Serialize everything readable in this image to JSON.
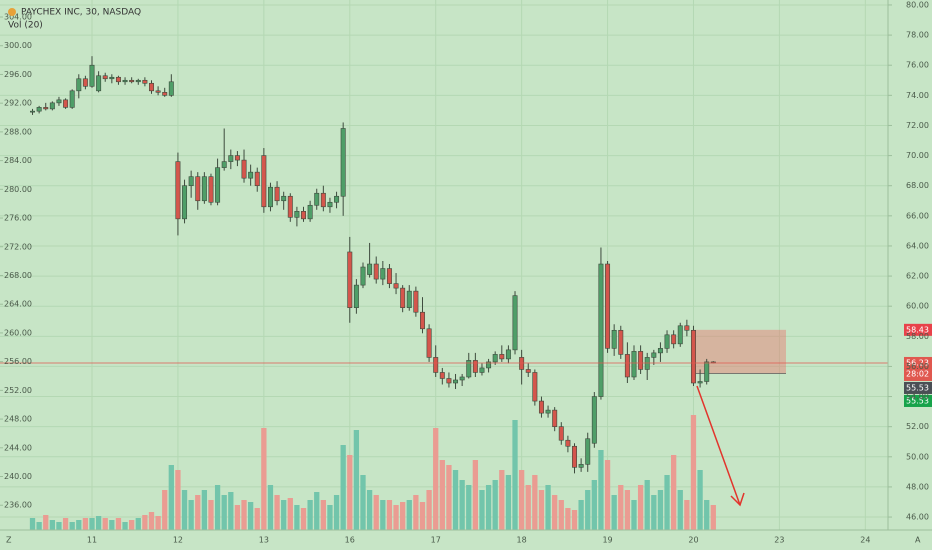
{
  "chart_data": {
    "type": "candlestick",
    "title": "PAYCHEX INC, 30, NASDAQ",
    "subtitle": "Vol (20)",
    "background": "#c7e5c6",
    "grid": true,
    "grid_color": "#b4d8b3",
    "up_color": "#4f9e68",
    "down_color": "#d4564c",
    "volume_up_color": "#72c5ab",
    "volume_down_color": "#ea9c92",
    "xlim": [
      -4.92,
      129.43
    ],
    "xticks": [
      {
        "value": 9,
        "label": "11"
      },
      {
        "value": 22,
        "label": "12"
      },
      {
        "value": 35,
        "label": "13"
      },
      {
        "value": 48,
        "label": "16"
      },
      {
        "value": 61,
        "label": "17"
      },
      {
        "value": 74,
        "label": "18"
      },
      {
        "value": 87,
        "label": "19"
      },
      {
        "value": 100,
        "label": "20"
      },
      {
        "value": 113,
        "label": "23"
      },
      {
        "value": 126,
        "label": "24"
      }
    ],
    "ylim": [
      45.14,
      80.33
    ],
    "yticks": [
      {
        "value": 46,
        "label": "46.00"
      },
      {
        "value": 48,
        "label": "48.00"
      },
      {
        "value": 50,
        "label": "50.00"
      },
      {
        "value": 52,
        "label": "52.00"
      },
      {
        "value": 54,
        "label": "54.00"
      },
      {
        "value": 56,
        "label": "56.00"
      },
      {
        "value": 58,
        "label": "58.00"
      },
      {
        "value": 60,
        "label": "60.00"
      },
      {
        "value": 62,
        "label": "62.00"
      },
      {
        "value": 64,
        "label": "64.00"
      },
      {
        "value": 66,
        "label": "66.00"
      },
      {
        "value": 68,
        "label": "68.00"
      },
      {
        "value": 70,
        "label": "70.00"
      },
      {
        "value": 72,
        "label": "72.00"
      },
      {
        "value": 74,
        "label": "74.00"
      },
      {
        "value": 76,
        "label": "76.00"
      },
      {
        "value": 78,
        "label": "78.00"
      },
      {
        "value": 80,
        "label": "80.00"
      }
    ],
    "y2lim": [
      232.55,
      306.37
    ],
    "y2ticks": [
      {
        "value": 236,
        "label": "236.00"
      },
      {
        "value": 240,
        "label": "240.00"
      },
      {
        "value": 244,
        "label": "244.00"
      },
      {
        "value": 248,
        "label": "248.00"
      },
      {
        "value": 252,
        "label": "252.00"
      },
      {
        "value": 256,
        "label": "256.00"
      },
      {
        "value": 260,
        "label": "260.00"
      },
      {
        "value": 264,
        "label": "264.00"
      },
      {
        "value": 268,
        "label": "268.00"
      },
      {
        "value": 272,
        "label": "272.00"
      },
      {
        "value": 276,
        "label": "276.00"
      },
      {
        "value": 280,
        "label": "280.00"
      },
      {
        "value": 284,
        "label": "284.00"
      },
      {
        "value": 288,
        "label": "288.00"
      },
      {
        "value": 292,
        "label": "292.00"
      },
      {
        "value": 296,
        "label": "296.00"
      },
      {
        "value": 300,
        "label": "300.00"
      },
      {
        "value": 304,
        "label": "304.00"
      }
    ],
    "candles": [
      [
        72.9,
        73.1,
        72.7,
        72.95
      ],
      [
        72.95,
        73.3,
        72.8,
        73.2
      ],
      [
        73.2,
        73.5,
        73.0,
        73.1
      ],
      [
        73.1,
        73.6,
        73.0,
        73.5
      ],
      [
        73.5,
        73.9,
        73.3,
        73.7
      ],
      [
        73.7,
        73.8,
        73.1,
        73.2
      ],
      [
        73.2,
        74.4,
        73.1,
        74.3
      ],
      [
        74.3,
        75.4,
        73.8,
        75.1
      ],
      [
        75.1,
        75.3,
        74.4,
        74.6
      ],
      [
        74.6,
        76.6,
        74.5,
        76.0
      ],
      [
        74.3,
        75.6,
        74.2,
        75.3
      ],
      [
        75.3,
        75.5,
        74.9,
        75.1
      ],
      [
        75.1,
        75.4,
        74.8,
        75.2
      ],
      [
        75.2,
        75.3,
        74.7,
        74.9
      ],
      [
        74.9,
        75.2,
        74.7,
        75.0
      ],
      [
        75.0,
        75.2,
        74.8,
        74.9
      ],
      [
        74.9,
        75.1,
        74.7,
        75.0
      ],
      [
        75.0,
        75.2,
        74.6,
        74.8
      ],
      [
        74.8,
        75.0,
        74.1,
        74.3
      ],
      [
        74.3,
        74.6,
        74.0,
        74.2
      ],
      [
        74.2,
        74.5,
        73.9,
        74.0
      ],
      [
        74.0,
        75.4,
        73.9,
        74.9
      ],
      [
        69.6,
        70.2,
        64.7,
        65.8
      ],
      [
        65.8,
        68.4,
        65.5,
        68.0
      ],
      [
        68.0,
        69.0,
        67.2,
        68.6
      ],
      [
        68.6,
        68.9,
        66.4,
        67.0
      ],
      [
        67.0,
        68.9,
        66.8,
        68.6
      ],
      [
        68.6,
        68.8,
        66.7,
        66.9
      ],
      [
        66.9,
        69.8,
        66.7,
        69.2
      ],
      [
        69.2,
        71.8,
        69.0,
        69.6
      ],
      [
        69.6,
        70.4,
        69.1,
        70.0
      ],
      [
        70.0,
        70.3,
        69.3,
        69.7
      ],
      [
        69.7,
        70.4,
        68.2,
        68.5
      ],
      [
        68.5,
        69.4,
        68.0,
        68.9
      ],
      [
        68.9,
        69.2,
        67.6,
        68.0
      ],
      [
        70.0,
        70.5,
        66.2,
        66.6
      ],
      [
        66.6,
        68.2,
        66.3,
        67.9
      ],
      [
        67.9,
        68.3,
        66.7,
        67.0
      ],
      [
        67.0,
        67.6,
        66.4,
        67.3
      ],
      [
        67.3,
        67.5,
        65.6,
        65.9
      ],
      [
        65.9,
        66.6,
        65.3,
        66.3
      ],
      [
        66.3,
        66.6,
        65.6,
        65.8
      ],
      [
        65.8,
        67.0,
        65.6,
        66.7
      ],
      [
        66.7,
        67.8,
        66.4,
        67.5
      ],
      [
        67.5,
        68.0,
        66.3,
        66.6
      ],
      [
        66.6,
        67.2,
        66.2,
        66.9
      ],
      [
        66.9,
        67.6,
        66.5,
        67.3
      ],
      [
        67.3,
        72.2,
        66.0,
        71.8
      ],
      [
        63.6,
        64.6,
        58.9,
        59.9
      ],
      [
        59.9,
        61.8,
        59.5,
        61.4
      ],
      [
        61.4,
        62.9,
        61.2,
        62.6
      ],
      [
        62.1,
        64.2,
        61.9,
        62.8
      ],
      [
        62.8,
        63.3,
        61.5,
        61.8
      ],
      [
        61.8,
        63.0,
        61.4,
        62.5
      ],
      [
        62.5,
        62.8,
        61.2,
        61.5
      ],
      [
        61.5,
        62.2,
        60.8,
        61.2
      ],
      [
        61.2,
        61.4,
        59.6,
        59.9
      ],
      [
        59.9,
        61.4,
        59.7,
        61.0
      ],
      [
        61.0,
        61.3,
        59.3,
        59.6
      ],
      [
        59.6,
        60.6,
        58.2,
        58.5
      ],
      [
        58.5,
        58.8,
        56.3,
        56.6
      ],
      [
        56.6,
        57.4,
        55.3,
        55.6
      ],
      [
        55.6,
        55.9,
        54.8,
        55.2
      ],
      [
        55.2,
        55.6,
        54.6,
        54.9
      ],
      [
        54.9,
        55.5,
        54.5,
        55.1
      ],
      [
        55.1,
        55.5,
        54.7,
        55.3
      ],
      [
        55.3,
        56.9,
        55.2,
        56.4
      ],
      [
        56.4,
        56.9,
        55.3,
        55.6
      ],
      [
        55.6,
        56.2,
        55.4,
        55.9
      ],
      [
        55.9,
        56.5,
        55.6,
        56.3
      ],
      [
        56.3,
        57.0,
        56.1,
        56.8
      ],
      [
        56.8,
        57.4,
        56.3,
        56.5
      ],
      [
        56.5,
        57.4,
        56.2,
        57.1
      ],
      [
        57.1,
        61.0,
        56.8,
        60.7
      ],
      [
        56.6,
        57.1,
        54.8,
        55.8
      ],
      [
        55.8,
        56.2,
        55.3,
        55.6
      ],
      [
        55.6,
        55.8,
        53.4,
        53.7
      ],
      [
        53.7,
        54.0,
        52.6,
        52.9
      ],
      [
        52.9,
        53.4,
        52.6,
        53.1
      ],
      [
        53.1,
        53.3,
        51.7,
        52.0
      ],
      [
        52.0,
        52.3,
        50.8,
        51.1
      ],
      [
        51.1,
        51.4,
        50.3,
        50.7
      ],
      [
        50.7,
        50.9,
        48.9,
        49.3
      ],
      [
        49.3,
        49.9,
        49.0,
        49.5
      ],
      [
        49.5,
        51.6,
        49.0,
        51.2
      ],
      [
        50.9,
        54.3,
        50.6,
        54.0
      ],
      [
        54.0,
        63.9,
        53.8,
        62.8
      ],
      [
        62.8,
        63.0,
        56.9,
        57.2
      ],
      [
        57.2,
        58.8,
        56.7,
        58.4
      ],
      [
        58.4,
        58.7,
        56.5,
        56.8
      ],
      [
        56.8,
        57.6,
        54.9,
        55.3
      ],
      [
        55.3,
        57.4,
        55.1,
        57.0
      ],
      [
        57.0,
        57.4,
        55.5,
        55.8
      ],
      [
        55.8,
        56.9,
        55.1,
        56.6
      ],
      [
        56.6,
        57.1,
        56.1,
        56.9
      ],
      [
        56.9,
        57.6,
        56.3,
        57.2
      ],
      [
        57.2,
        58.4,
        56.9,
        58.1
      ],
      [
        58.1,
        58.4,
        57.2,
        57.5
      ],
      [
        57.5,
        58.9,
        57.3,
        58.7
      ],
      [
        58.7,
        59.1,
        58.0,
        58.4
      ],
      [
        58.4,
        58.7,
        54.7,
        54.9
      ],
      [
        54.9,
        55.8,
        54.6,
        55.0
      ],
      [
        55.0,
        56.5,
        54.8,
        56.3
      ],
      [
        56.3,
        56.35,
        56.2,
        56.23
      ]
    ],
    "volume": [
      12,
      8,
      15,
      10,
      8,
      12,
      8,
      10,
      12,
      12,
      14,
      12,
      10,
      12,
      8,
      10,
      12,
      15,
      18,
      14,
      40,
      65,
      60,
      40,
      30,
      35,
      40,
      30,
      45,
      35,
      38,
      25,
      30,
      28,
      22,
      102,
      45,
      35,
      30,
      32,
      25,
      22,
      30,
      38,
      30,
      25,
      35,
      85,
      75,
      100,
      55,
      40,
      35,
      30,
      30,
      25,
      28,
      30,
      35,
      28,
      40,
      102,
      70,
      65,
      60,
      50,
      45,
      70,
      40,
      45,
      50,
      60,
      55,
      110,
      60,
      45,
      55,
      40,
      45,
      35,
      30,
      22,
      20,
      30,
      40,
      50,
      80,
      70,
      35,
      45,
      40,
      30,
      45,
      50,
      35,
      40,
      55,
      75,
      40,
      30,
      115,
      60,
      30,
      25
    ],
    "last_price": 56.23,
    "last_price_color": "#e0584f",
    "countdown": "28:02",
    "price_labels": [
      {
        "value": 58.43,
        "label": "58.43",
        "color": "#e8424a"
      },
      {
        "value": 56.23,
        "label": "56.23",
        "color": "#e0584f"
      },
      {
        "value": 55.53,
        "label": "55.53",
        "color": "#4a4f55"
      },
      {
        "value": 55.53,
        "label": "55.53",
        "color": "#16a34a"
      }
    ],
    "box": {
      "top": 58.43,
      "bottom": 55.53,
      "color": "rgba(232,120,110,0.45)"
    }
  },
  "toolbar": {
    "left": "Z",
    "right": "A"
  }
}
